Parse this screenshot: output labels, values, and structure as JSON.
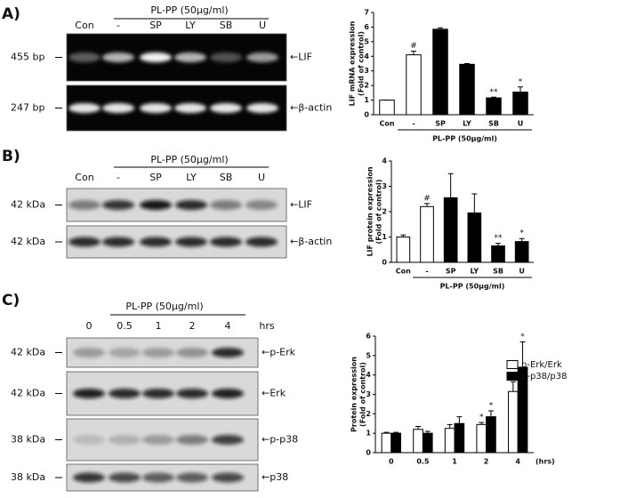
{
  "panels": [
    {
      "label": "A)",
      "treatment": "PL-PP (50µg/ml)",
      "lanes": [
        "Con",
        "-",
        "SP",
        "LY",
        "SB",
        "U"
      ],
      "blots": [
        {
          "size": "455 bp",
          "target": "←LIF"
        },
        {
          "size": "247 bp",
          "target": "←β-actin"
        }
      ]
    },
    {
      "label": "B)",
      "treatment": "PL-PP (50µg/ml)",
      "lanes": [
        "Con",
        "-",
        "SP",
        "LY",
        "SB",
        "U"
      ],
      "blots": [
        {
          "size": "42 kDa",
          "target": "←LIF"
        },
        {
          "size": "42 kDa",
          "target": "←β-actin"
        }
      ]
    },
    {
      "label": "C)",
      "treatment": "PL-PP (50µg/ml)",
      "lanes": [
        "0",
        "0.5",
        "1",
        "2",
        "4",
        "hrs"
      ],
      "blots": [
        {
          "size": "42 kDa",
          "target": "←p-Erk"
        },
        {
          "size": "42 kDa",
          "target": "←Erk"
        },
        {
          "size": "38 kDa",
          "target": "←p-p38"
        },
        {
          "size": "38 kDa",
          "target": "←p38"
        }
      ]
    }
  ],
  "chart_data": [
    {
      "type": "bar",
      "ylabel": "LIF mRNA expression",
      "ylabel_sub": "(Fold of control)",
      "categories": [
        "Con",
        "-",
        "SP",
        "LY",
        "SB",
        "U"
      ],
      "group_label": "PL-PP (50µg/ml)",
      "series": [
        {
          "values": [
            1,
            4.1,
            5.85,
            3.45,
            1.15,
            1.55
          ],
          "errors": [
            0,
            0.25,
            0.1,
            0.05,
            0.05,
            0.35
          ],
          "colors": [
            "#ffffff",
            "#ffffff",
            "#000000",
            "#000000",
            "#000000",
            "#000000"
          ]
        }
      ],
      "annotations": [
        {
          "series": 0,
          "index": 1,
          "text": "#"
        },
        {
          "series": 0,
          "index": 4,
          "text": "**"
        },
        {
          "series": 0,
          "index": 5,
          "text": "*"
        }
      ],
      "ylim": [
        0,
        7
      ],
      "yticks": [
        0,
        1,
        2,
        3,
        4,
        5,
        6,
        7
      ]
    },
    {
      "type": "bar",
      "ylabel": "LIF protein expression",
      "ylabel_sub": "(Fold of control)",
      "categories": [
        "Con",
        "-",
        "SP",
        "LY",
        "SB",
        "U"
      ],
      "group_label": "PL-PP (50µg/ml)",
      "series": [
        {
          "values": [
            1,
            2.2,
            2.55,
            1.95,
            0.65,
            0.82
          ],
          "errors": [
            0.08,
            0.12,
            0.95,
            0.75,
            0.1,
            0.12
          ],
          "colors": [
            "#ffffff",
            "#ffffff",
            "#000000",
            "#000000",
            "#000000",
            "#000000"
          ]
        }
      ],
      "annotations": [
        {
          "series": 0,
          "index": 1,
          "text": "#"
        },
        {
          "series": 0,
          "index": 4,
          "text": "**"
        },
        {
          "series": 0,
          "index": 5,
          "text": "*"
        }
      ],
      "ylim": [
        0,
        4
      ],
      "yticks": [
        0,
        1,
        2,
        3,
        4
      ]
    },
    {
      "type": "bar",
      "ylabel": "Protein expression",
      "ylabel_sub": "(Fold of control)",
      "categories": [
        "0",
        "0.5",
        "1",
        "2",
        "4"
      ],
      "x_unit": "(hrs)",
      "legend": "upper right",
      "series": [
        {
          "name": "p-Erk/Erk",
          "color": "#ffffff",
          "values": [
            1,
            1.2,
            1.25,
            1.45,
            3.15
          ],
          "errors": [
            0.05,
            0.15,
            0.2,
            0.1,
            0.5
          ]
        },
        {
          "name": "p-p38/p38",
          "color": "#000000",
          "values": [
            1,
            1,
            1.5,
            1.85,
            4.4
          ],
          "errors": [
            0.05,
            0.1,
            0.35,
            0.3,
            1.3
          ]
        }
      ],
      "annotations": [
        {
          "series": 0,
          "index": 3,
          "text": "*"
        },
        {
          "series": 1,
          "index": 3,
          "text": "*"
        },
        {
          "series": 0,
          "index": 4,
          "text": "*"
        },
        {
          "series": 1,
          "index": 4,
          "text": "*"
        }
      ],
      "ylim": [
        0,
        6
      ],
      "yticks": [
        0,
        1,
        2,
        3,
        4,
        5,
        6
      ]
    }
  ]
}
